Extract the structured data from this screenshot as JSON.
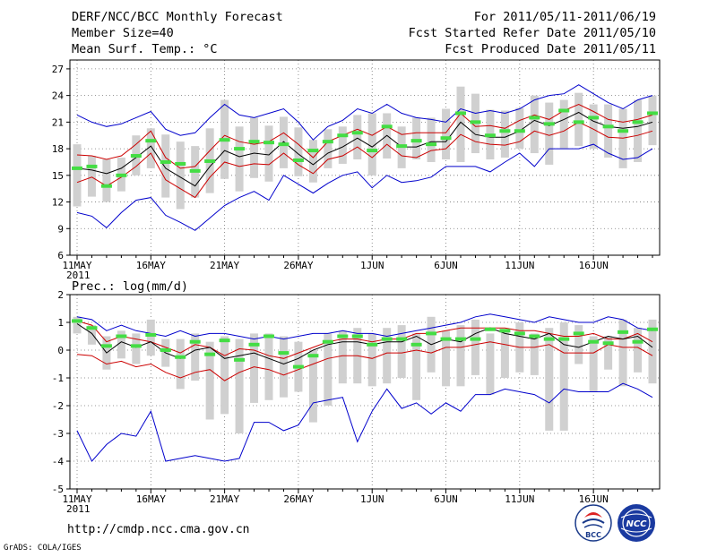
{
  "header": {
    "title": "DERF/NCC/BCC Monthly Forecast",
    "member_size": "Member Size=40",
    "variable": "Mean Surf. Temp.: °C",
    "period": "For 2011/05/11-2011/06/19",
    "refer_date": "Fcst Started Refer Date 2011/05/10",
    "produced_date": "Fcst Produced Date 2011/05/11"
  },
  "footer": {
    "url": "http://cmdp.ncc.cma.gov.cn",
    "credit": "GrADS: COLA/IGES",
    "logo_left": "BCC",
    "logo_right": "NCC"
  },
  "colors": {
    "bound_line": "#0000cc",
    "spread_line": "#cc0000",
    "mean_line": "#000000",
    "box": "#d0d0d0",
    "median_dash": "#44dd44"
  },
  "chart_data": [
    {
      "type": "line",
      "name": "temperature",
      "ylabel": "Mean Surf. Temp.: °C",
      "x_tick_labels": [
        "11MAY",
        "16MAY",
        "21MAY",
        "26MAY",
        "1JUN",
        "6JUN",
        "11JUN",
        "16JUN"
      ],
      "x_tick_days": [
        1,
        6,
        11,
        16,
        21,
        26,
        31,
        36
      ],
      "x_year_label": "2011",
      "xlim": [
        1,
        40
      ],
      "ylim": [
        6,
        28
      ],
      "yticks": [
        6,
        9,
        12,
        15,
        18,
        21,
        24,
        27
      ],
      "grid": true,
      "series": [
        {
          "name": "max",
          "color": "blue",
          "values": [
            21.8,
            21,
            20.5,
            20.8,
            21.5,
            22.2,
            20.2,
            19.5,
            19.8,
            21.5,
            23,
            21.8,
            21.5,
            22,
            22.5,
            21,
            19,
            20.5,
            21.2,
            22.5,
            22,
            23,
            22,
            21.5,
            21.3,
            21,
            22.5,
            22,
            22.3,
            22,
            22.5,
            23.5,
            24,
            24.2,
            25.2,
            24.2,
            23.2,
            22.5,
            23.5,
            24
          ]
        },
        {
          "name": "upper",
          "color": "red",
          "values": [
            17.3,
            17.2,
            16.8,
            17.2,
            18.5,
            20,
            17,
            15.8,
            16,
            17.8,
            19.5,
            18.8,
            18.5,
            18.8,
            19.8,
            18.5,
            17,
            18.8,
            19.5,
            20.2,
            19.5,
            20.5,
            19.6,
            19.8,
            19.8,
            19.8,
            22,
            20.5,
            20.6,
            20.3,
            21.2,
            21.8,
            21.3,
            22.3,
            23,
            22.2,
            21.3,
            21,
            21.3,
            21.8
          ]
        },
        {
          "name": "mean",
          "color": "black",
          "values": [
            15.8,
            15.6,
            15.2,
            15.8,
            17,
            18.3,
            15.8,
            14.8,
            13.8,
            16,
            17.8,
            17.1,
            17.5,
            17.3,
            18.8,
            17.4,
            16.2,
            17.5,
            18.2,
            19.2,
            18.2,
            19.5,
            18.2,
            18.2,
            18.8,
            18.8,
            21,
            19.6,
            19.3,
            19.3,
            20,
            21.2,
            20.6,
            21.3,
            22.1,
            21.1,
            20.5,
            20.3,
            20.5,
            21
          ]
        },
        {
          "name": "lower",
          "color": "red",
          "values": [
            14.2,
            14.8,
            13.8,
            14.8,
            16,
            17.5,
            14.5,
            13.5,
            12.5,
            14.8,
            16.5,
            16,
            16.3,
            16.2,
            17.5,
            16.2,
            15.2,
            16.8,
            17.2,
            18.2,
            17,
            18.5,
            17.2,
            17,
            17.8,
            18,
            19.6,
            18.8,
            18.5,
            18.4,
            18.8,
            20,
            19.5,
            20,
            21,
            20.2,
            19.3,
            19.2,
            19.5,
            20
          ]
        },
        {
          "name": "min",
          "color": "blue",
          "values": [
            10.8,
            10.4,
            9.1,
            10.8,
            12.2,
            12.5,
            10.5,
            9.7,
            8.8,
            10.2,
            11.6,
            12.5,
            13.2,
            12.2,
            15,
            14,
            13,
            14.1,
            15,
            15.4,
            13.6,
            15,
            14.2,
            14.4,
            14.8,
            16,
            16,
            16,
            15.4,
            16.5,
            17.5,
            16,
            18,
            18,
            18,
            18.5,
            17.5,
            16.8,
            17,
            18
          ]
        }
      ],
      "boxes": [
        {
          "low": 11.5,
          "high": 18.5,
          "median": 15.8
        },
        {
          "low": 12.6,
          "high": 17.2,
          "median": 16.0
        },
        {
          "low": 12.0,
          "high": 16.8,
          "median": 13.8
        },
        {
          "low": 13.2,
          "high": 17.0,
          "median": 15.0
        },
        {
          "low": 15.0,
          "high": 19.5,
          "median": 17.2
        },
        {
          "low": 15.8,
          "high": 20.3,
          "median": 18.9
        },
        {
          "low": 12.5,
          "high": 19.6,
          "median": 16.5
        },
        {
          "low": 11.2,
          "high": 18.8,
          "median": 16.3
        },
        {
          "low": 12.5,
          "high": 18.3,
          "median": 15.5
        },
        {
          "low": 13.0,
          "high": 20.3,
          "median": 16.6
        },
        {
          "low": 14.6,
          "high": 23.5,
          "median": 19.0
        },
        {
          "low": 13.2,
          "high": 20.5,
          "median": 18.0
        },
        {
          "low": 14.7,
          "high": 21.5,
          "median": 18.8
        },
        {
          "low": 14.3,
          "high": 20.6,
          "median": 18.7
        },
        {
          "low": 15.8,
          "high": 21.6,
          "median": 18.5
        },
        {
          "low": 14.9,
          "high": 20.4,
          "median": 16.7
        },
        {
          "low": 14.2,
          "high": 19.0,
          "median": 17.8
        },
        {
          "low": 15.8,
          "high": 20.2,
          "median": 18.8
        },
        {
          "low": 16.3,
          "high": 20.5,
          "median": 19.5
        },
        {
          "low": 16.8,
          "high": 21.8,
          "median": 19.8
        },
        {
          "low": 15.0,
          "high": 22.0,
          "median": 17.8
        },
        {
          "low": 16.9,
          "high": 22.0,
          "median": 20.5
        },
        {
          "low": 15.8,
          "high": 20.5,
          "median": 18.3
        },
        {
          "low": 16.8,
          "high": 21.5,
          "median": 18.9
        },
        {
          "low": 16.5,
          "high": 21.5,
          "median": 18.5
        },
        {
          "low": 16.8,
          "high": 22.5,
          "median": 19.2
        },
        {
          "low": 16.5,
          "high": 25.0,
          "median": 22.0
        },
        {
          "low": 17.5,
          "high": 24.2,
          "median": 21.0
        },
        {
          "low": 16.8,
          "high": 22.4,
          "median": 19.5
        },
        {
          "low": 17.0,
          "high": 22.3,
          "median": 20.0
        },
        {
          "low": 18.0,
          "high": 22.6,
          "median": 20.0
        },
        {
          "low": 17.5,
          "high": 24.0,
          "median": 21.5
        },
        {
          "low": 16.2,
          "high": 23.2,
          "median": 20.8
        },
        {
          "low": 18.0,
          "high": 23.5,
          "median": 22.3
        },
        {
          "low": 18.3,
          "high": 24.3,
          "median": 21.0
        },
        {
          "low": 18.0,
          "high": 23.0,
          "median": 21.5
        },
        {
          "low": 17.0,
          "high": 23.0,
          "median": 20.5
        },
        {
          "low": 15.8,
          "high": 22.5,
          "median": 20.0
        },
        {
          "low": 16.5,
          "high": 23.5,
          "median": 21.0
        },
        {
          "low": 18.4,
          "high": 24.0,
          "median": 22.0
        }
      ]
    },
    {
      "type": "line",
      "name": "precipitation",
      "ylabel": "Prec.: log(mm/d)",
      "x_tick_labels": [
        "11MAY",
        "16MAY",
        "21MAY",
        "26MAY",
        "1JUN",
        "6JUN",
        "11JUN",
        "16JUN"
      ],
      "x_tick_days": [
        1,
        6,
        11,
        16,
        21,
        26,
        31,
        36
      ],
      "x_year_label": "2011",
      "xlim": [
        1,
        40
      ],
      "ylim": [
        -5,
        2
      ],
      "yticks": [
        -5,
        -4,
        -3,
        -2,
        -1,
        0,
        1,
        2
      ],
      "grid": true,
      "series": [
        {
          "name": "max",
          "color": "blue",
          "values": [
            1.2,
            1.1,
            0.7,
            0.9,
            0.7,
            0.6,
            0.5,
            0.7,
            0.5,
            0.6,
            0.6,
            0.5,
            0.4,
            0.5,
            0.4,
            0.5,
            0.6,
            0.6,
            0.7,
            0.6,
            0.6,
            0.5,
            0.6,
            0.7,
            0.8,
            0.9,
            1,
            1.2,
            1.3,
            1.2,
            1.1,
            1,
            1.2,
            1.1,
            1,
            1,
            1.2,
            1.1,
            0.8,
            0.7
          ]
        },
        {
          "name": "upper",
          "color": "red",
          "values": [
            1.05,
            0.9,
            0.3,
            0.5,
            0.4,
            0.3,
            0.1,
            -0.1,
            0.2,
            0.1,
            -0.2,
            0.05,
            0,
            -0.2,
            -0.3,
            -0.1,
            0.1,
            0.3,
            0.4,
            0.4,
            0.3,
            0.4,
            0.4,
            0.6,
            0.6,
            0.7,
            0.8,
            0.8,
            0.8,
            0.8,
            0.7,
            0.7,
            0.6,
            0.5,
            0.5,
            0.6,
            0.4,
            0.4,
            0.6,
            0.3
          ]
        },
        {
          "name": "mean",
          "color": "black",
          "values": [
            0.95,
            0.6,
            -0.1,
            0.3,
            0.1,
            0.3,
            -0.1,
            -0.3,
            0,
            0.1,
            -0.3,
            -0.2,
            -0.1,
            -0.3,
            -0.5,
            -0.3,
            0,
            0.2,
            0.3,
            0.3,
            0.2,
            0.3,
            0.3,
            0.5,
            0.2,
            0.4,
            0.3,
            0.6,
            0.8,
            0.6,
            0.5,
            0.4,
            0.6,
            0.2,
            0.1,
            0.3,
            0.5,
            0.4,
            0.5,
            0.1
          ]
        },
        {
          "name": "lower",
          "color": "red",
          "values": [
            -0.15,
            -0.2,
            -0.5,
            -0.4,
            -0.6,
            -0.5,
            -0.8,
            -1,
            -0.8,
            -0.7,
            -1.1,
            -0.8,
            -0.6,
            -0.7,
            -0.9,
            -0.7,
            -0.5,
            -0.3,
            -0.2,
            -0.2,
            -0.3,
            -0.1,
            -0.1,
            0,
            -0.1,
            0.1,
            0.1,
            0.2,
            0.3,
            0.2,
            0.1,
            0.1,
            0.2,
            -0.1,
            -0.1,
            -0.1,
            0.2,
            0.1,
            0.1,
            -0.2
          ]
        },
        {
          "name": "min",
          "color": "blue",
          "values": [
            -2.9,
            -4,
            -3.4,
            -3,
            -3.1,
            -2.2,
            -4,
            -3.9,
            -3.8,
            -3.9,
            -4,
            -3.9,
            -2.6,
            -2.6,
            -2.9,
            -2.7,
            -1.9,
            -1.8,
            -1.7,
            -3.3,
            -2.2,
            -1.4,
            -2.1,
            -1.9,
            -2.3,
            -1.9,
            -2.2,
            -1.6,
            -1.6,
            -1.4,
            -1.5,
            -1.6,
            -1.9,
            -1.4,
            -1.5,
            -1.5,
            -1.5,
            -1.2,
            -1.4,
            -1.7
          ]
        }
      ],
      "boxes": [
        {
          "low": 0.6,
          "high": 1.2,
          "median": 1.05
        },
        {
          "low": 0.2,
          "high": 0.9,
          "median": 0.8
        },
        {
          "low": -0.7,
          "high": 0.5,
          "median": 0.15
        },
        {
          "low": -0.3,
          "high": 0.7,
          "median": 0.5
        },
        {
          "low": -0.5,
          "high": 0.6,
          "median": 0.15
        },
        {
          "low": -0.2,
          "high": 1.1,
          "median": 0.55
        },
        {
          "low": -0.6,
          "high": 0.4,
          "median": 0.0
        },
        {
          "low": -1.4,
          "high": 0.4,
          "median": -0.25
        },
        {
          "low": -1.1,
          "high": 0.6,
          "median": 0.3
        },
        {
          "low": -2.5,
          "high": 0.3,
          "median": -0.15
        },
        {
          "low": -2.3,
          "high": 0.5,
          "median": 0.35
        },
        {
          "low": -3.0,
          "high": 0.4,
          "median": -0.35
        },
        {
          "low": -1.9,
          "high": 0.6,
          "median": 0.2
        },
        {
          "low": -1.8,
          "high": 0.6,
          "median": 0.5
        },
        {
          "low": -1.7,
          "high": 0.5,
          "median": -0.1
        },
        {
          "low": -1.5,
          "high": 0.3,
          "median": -0.6
        },
        {
          "low": -2.6,
          "high": 0.0,
          "median": -0.2
        },
        {
          "low": -2.0,
          "high": 0.6,
          "median": 0.3
        },
        {
          "low": -1.2,
          "high": 0.7,
          "median": 0.5
        },
        {
          "low": -1.2,
          "high": 0.8,
          "median": 0.5
        },
        {
          "low": -1.3,
          "high": 0.6,
          "median": 0.2
        },
        {
          "low": -1.2,
          "high": 0.8,
          "median": 0.4
        },
        {
          "low": -1.0,
          "high": 0.9,
          "median": 0.4
        },
        {
          "low": -1.8,
          "high": 0.6,
          "median": 0.2
        },
        {
          "low": -0.8,
          "high": 1.2,
          "median": 0.6
        },
        {
          "low": -1.3,
          "high": 0.7,
          "median": 0.4
        },
        {
          "low": -1.3,
          "high": 0.9,
          "median": 0.4
        },
        {
          "low": -0.9,
          "high": 1.1,
          "median": 0.4
        },
        {
          "low": -1.6,
          "high": 0.6,
          "median": 0.75
        },
        {
          "low": -1.0,
          "high": 0.7,
          "median": 0.7
        },
        {
          "low": -0.8,
          "high": 1.0,
          "median": 0.6
        },
        {
          "low": -0.9,
          "high": 0.6,
          "median": 0.5
        },
        {
          "low": -2.9,
          "high": 0.8,
          "median": 0.4
        },
        {
          "low": -2.9,
          "high": 1.0,
          "median": 0.4
        },
        {
          "low": -0.5,
          "high": 0.9,
          "median": 0.6
        },
        {
          "low": -1.5,
          "high": 0.5,
          "median": 0.3
        },
        {
          "low": -0.7,
          "high": 0.5,
          "median": 0.25
        },
        {
          "low": -1.3,
          "high": 1.1,
          "median": 0.65
        },
        {
          "low": -0.8,
          "high": 0.8,
          "median": 0.3
        },
        {
          "low": -1.2,
          "high": 1.1,
          "median": 0.75
        }
      ]
    }
  ]
}
